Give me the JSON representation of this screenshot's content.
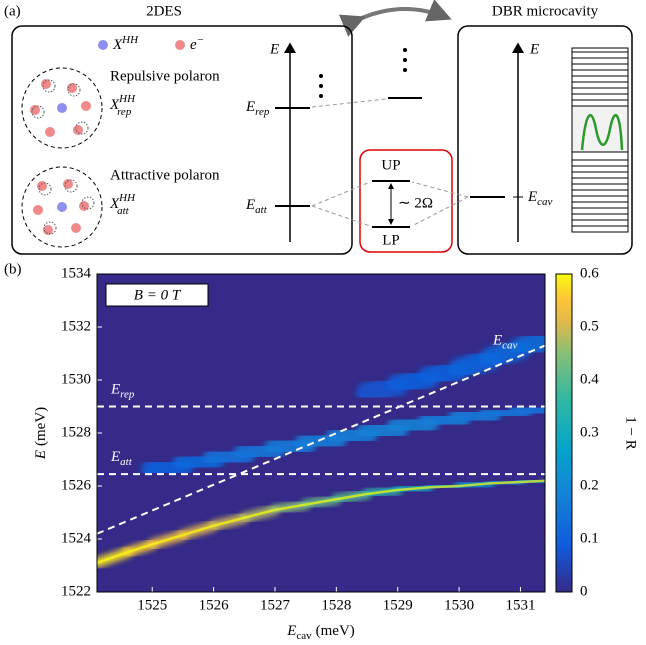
{
  "panel_a": {
    "label": "(a)",
    "left_title": "2DES",
    "right_title": "DBR microcavity",
    "legend_exciton": {
      "main": "X",
      "sup": "HH"
    },
    "legend_electron": {
      "main": "e",
      "sup": "−"
    },
    "repulsive": {
      "name": "Repulsive polaron",
      "main": "X",
      "sup": "HH",
      "sub": "rep"
    },
    "attractive": {
      "name": "Attractive polaron",
      "main": "X",
      "sup": "HH",
      "sub": "att"
    },
    "axis_left": "E",
    "e_rep": {
      "main": "E",
      "sub": "rep"
    },
    "e_att": {
      "main": "E",
      "sub": "att"
    },
    "up": "UP",
    "lp": "LP",
    "splitting": "∼ 2Ω",
    "axis_right": "E",
    "e_cav": {
      "main": "E",
      "sub": "cav"
    }
  },
  "chart_data": {
    "type": "heatmap",
    "panel_label": "(b)",
    "xlabel": {
      "main": "E",
      "sub": "cav",
      "unit": "(meV)"
    },
    "ylabel": {
      "main": "E",
      "unit": "(meV)"
    },
    "colorbar_label": "1 − R",
    "colormap": "parula",
    "field_label": "B = 0 T",
    "xlim": [
      1524.1,
      1531.4
    ],
    "xticks": [
      1525,
      1526,
      1527,
      1528,
      1529,
      1530,
      1531
    ],
    "ylim": [
      1522,
      1534
    ],
    "yticks": [
      1522,
      1524,
      1526,
      1528,
      1530,
      1532,
      1534
    ],
    "zlim": [
      0,
      0.6
    ],
    "zticks": [
      0,
      0.1,
      0.2,
      0.3,
      0.4,
      0.5,
      0.6
    ],
    "lines": [
      {
        "name": {
          "main": "E",
          "sub": "cav"
        },
        "x": [
          1524.1,
          1531.4
        ],
        "values": [
          1524.2,
          1531.3
        ]
      },
      {
        "name": {
          "main": "E",
          "sub": "rep"
        },
        "x": [
          1524.1,
          1531.4
        ],
        "values": [
          1529,
          1529
        ]
      },
      {
        "name": {
          "main": "E",
          "sub": "att"
        },
        "x": [
          1524.1,
          1531.4
        ],
        "values": [
          1526.45,
          1526.45
        ]
      }
    ],
    "branches": [
      {
        "x": [
          1524.1,
          1524.6,
          1525,
          1525.5,
          1526,
          1526.5,
          1527,
          1527.5,
          1528,
          1528.5,
          1529,
          1529.5,
          1530,
          1530.5,
          1531,
          1531.4
        ],
        "values": [
          1523.1,
          1523.5,
          1523.8,
          1524.15,
          1524.5,
          1524.8,
          1525.1,
          1525.3,
          1525.5,
          1525.7,
          1525.85,
          1525.95,
          1526.0,
          1526.1,
          1526.15,
          1526.2
        ],
        "intensity": [
          0.58,
          0.56,
          0.54,
          0.52,
          0.5,
          0.48,
          0.45,
          0.42,
          0.4,
          0.35,
          0.3,
          0.25,
          0.22,
          0.2,
          0.2,
          0.18
        ]
      },
      {
        "x": [
          1525,
          1525.5,
          1526,
          1526.5,
          1527,
          1527.5,
          1528,
          1528.5,
          1529,
          1529.5,
          1530,
          1530.5,
          1531,
          1531.4
        ],
        "values": [
          1526.6,
          1526.8,
          1527.0,
          1527.2,
          1527.4,
          1527.6,
          1527.8,
          1528.0,
          1528.2,
          1528.4,
          1528.55,
          1528.7,
          1528.8,
          1528.9
        ],
        "intensity": [
          0.1,
          0.12,
          0.14,
          0.15,
          0.16,
          0.17,
          0.17,
          0.18,
          0.18,
          0.17,
          0.16,
          0.15,
          0.14,
          0.14
        ]
      },
      {
        "x": [
          1528.5,
          1529,
          1529.5,
          1530,
          1530.5,
          1531,
          1531.4
        ],
        "values": [
          1529.5,
          1529.8,
          1530.1,
          1530.4,
          1530.8,
          1531.2,
          1531.5
        ],
        "intensity": [
          0.08,
          0.1,
          0.1,
          0.11,
          0.12,
          0.13,
          0.14
        ]
      }
    ]
  }
}
